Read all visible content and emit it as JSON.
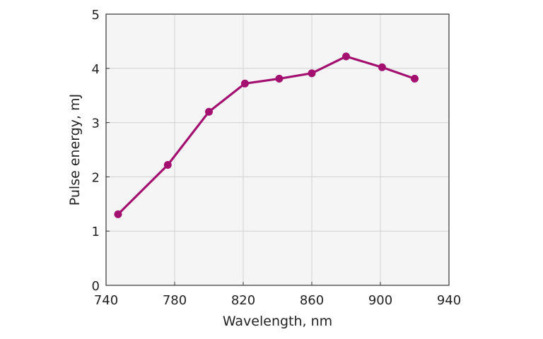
{
  "chart_data": {
    "type": "line",
    "xlabel": "Wavelength, nm",
    "ylabel": "Pulse energy, mJ",
    "xlim": [
      740,
      940
    ],
    "ylim": [
      0,
      5
    ],
    "xticks": [
      740,
      780,
      820,
      860,
      900,
      940
    ],
    "yticks": [
      0,
      1,
      2,
      3,
      4,
      5
    ],
    "grid": true,
    "series": [
      {
        "color": "#a3106f",
        "x": [
          747,
          776,
          800,
          821,
          841,
          860,
          880,
          901,
          920
        ],
        "y": [
          1.31,
          2.22,
          3.2,
          3.72,
          3.81,
          3.91,
          4.22,
          4.02,
          3.81
        ]
      }
    ],
    "colors": {
      "plot_background": "#f5f5f5",
      "grid": "#d2d2d2",
      "frame": "#333333"
    }
  }
}
